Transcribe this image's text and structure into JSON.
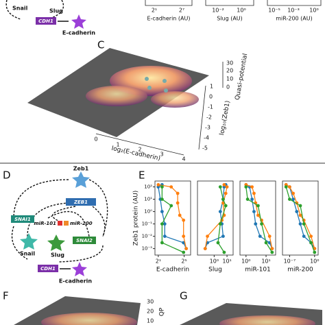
{
  "top": {
    "network": {
      "snail": "Snail",
      "slug": "Slug",
      "cdh1": "CDH1",
      "ecad": "E-cadherin"
    },
    "axes": [
      {
        "label": "E-cadherin (AU)",
        "ticks": [
          "2¹",
          "2⁷"
        ]
      },
      {
        "label": "Slug (AU)",
        "ticks": [
          "10⁻²",
          "10⁰"
        ]
      },
      {
        "label": "miR-200 (AU)",
        "ticks": [
          "10⁻⁵",
          "10⁻³",
          "10⁰"
        ]
      }
    ]
  },
  "panel_c": {
    "label": "C",
    "xlabel": "log₂(E-cadherin)",
    "ylabel": "log₁₀(Zeb1)",
    "zlabel": "Quasi-potential",
    "xticks": [
      "0",
      "1",
      "2",
      "3",
      "4"
    ],
    "yticks": [
      "1",
      "0",
      "-1",
      "-2",
      "-3",
      "-4",
      "-5"
    ],
    "zticks": [
      "30",
      "20",
      "10",
      "0"
    ]
  },
  "panel_d": {
    "label": "D",
    "nodes": {
      "zeb1_protein": "Zeb1",
      "zeb1_gene": "ZEB1",
      "snai1": "SNAI1",
      "snai2": "SNAI2",
      "mir101": "miR-101",
      "mir200": "miR-200",
      "snail": "Snail",
      "slug": "Slug",
      "cdh1": "CDH1",
      "ecad": "E-cadherin"
    }
  },
  "panel_e": {
    "label": "E"
  },
  "panel_f": {
    "label": "F",
    "zlabel": "QP",
    "zticks": [
      "30",
      "20",
      "10"
    ]
  },
  "panel_g": {
    "label": "G"
  },
  "chart_data": [
    {
      "type": "line",
      "xlabel": "E-cadherin",
      "ylabel": "Zeb1 protein (AU)",
      "xlog": true,
      "ylog": true,
      "xlim": [
        1.4,
        64
      ],
      "ylim": [
        0.0003,
        300
      ],
      "xticks": [
        {
          "value": 2,
          "label": "2¹"
        },
        {
          "value": 32,
          "label": "2⁵"
        }
      ],
      "yticks": [
        {
          "value": 100,
          "label": "10²"
        },
        {
          "value": 10,
          "label": "10¹"
        },
        {
          "value": 1,
          "label": "10⁰"
        },
        {
          "value": 0.1,
          "label": "10⁻¹"
        },
        {
          "value": 0.01,
          "label": "10⁻²"
        },
        {
          "value": 0.001,
          "label": "10⁻³"
        }
      ],
      "series": [
        {
          "color": "#1f77b4",
          "x": [
            3,
            2,
            2.5,
            3,
            4,
            4,
            30,
            40
          ],
          "values": [
            150,
            100,
            10,
            1,
            0.1,
            0.01,
            0.003,
            0.001
          ]
        },
        {
          "color": "#ff7f0e",
          "x": [
            2,
            8,
            16,
            16,
            20,
            30,
            30,
            40
          ],
          "values": [
            150,
            100,
            30,
            5,
            0.5,
            0.2,
            0.01,
            0.001
          ]
        },
        {
          "color": "#2ca02c",
          "x": [
            3,
            3,
            8,
            3,
            3,
            30
          ],
          "values": [
            100,
            10,
            3,
            0.1,
            0.003,
            0.0005
          ]
        }
      ]
    },
    {
      "type": "line",
      "xlabel": "Slug",
      "xlog": true,
      "ylog": true,
      "xlim": [
        0.05,
        30
      ],
      "ylim": [
        0.0003,
        300
      ],
      "xticks": [
        {
          "value": 1,
          "label": "10⁰"
        },
        {
          "value": 10,
          "label": "10¹"
        }
      ],
      "series": [
        {
          "color": "#1f77b4",
          "x": [
            8,
            6,
            5,
            3,
            4,
            5,
            0.3,
            0.2
          ],
          "values": [
            150,
            100,
            10,
            1,
            0.1,
            0.01,
            0.003,
            0.001
          ]
        },
        {
          "color": "#ff7f0e",
          "x": [
            6,
            10,
            8,
            5,
            6,
            4,
            0.3,
            0.2
          ],
          "values": [
            150,
            100,
            30,
            5,
            0.5,
            0.2,
            0.01,
            0.001
          ]
        },
        {
          "color": "#2ca02c",
          "x": [
            3,
            5,
            8,
            3,
            2,
            6
          ],
          "values": [
            100,
            10,
            3,
            0.1,
            0.003,
            0.0005
          ]
        }
      ]
    },
    {
      "type": "line",
      "xlabel": "miR-101",
      "xlog": true,
      "ylog": true,
      "xlim": [
        0.5,
        30
      ],
      "ylim": [
        0.0003,
        300
      ],
      "xticks": [
        {
          "value": 1,
          "label": "10⁰"
        },
        {
          "value": 10,
          "label": "10¹"
        }
      ],
      "series": [
        {
          "color": "#1f77b4",
          "x": [
            1,
            1.5,
            2,
            2.5,
            3,
            5,
            15,
            20
          ],
          "values": [
            150,
            100,
            10,
            1,
            0.1,
            0.01,
            0.003,
            0.001
          ]
        },
        {
          "color": "#ff7f0e",
          "x": [
            1,
            2,
            2.5,
            3,
            4,
            6,
            15,
            20
          ],
          "values": [
            150,
            100,
            30,
            5,
            0.5,
            0.2,
            0.01,
            0.001
          ]
        },
        {
          "color": "#2ca02c",
          "x": [
            1,
            1.2,
            4,
            6,
            10,
            20
          ],
          "values": [
            100,
            10,
            3,
            0.1,
            0.003,
            0.0005
          ]
        }
      ]
    },
    {
      "type": "line",
      "xlabel": "miR-200",
      "xlog": true,
      "ylog": true,
      "xlim": [
        1e-09,
        10
      ],
      "ylim": [
        0.0003,
        300
      ],
      "xticks": [
        {
          "value": 1e-07,
          "label": "10⁻⁷"
        },
        {
          "value": 1,
          "label": "10⁰"
        }
      ],
      "series": [
        {
          "color": "#1f77b4",
          "x": [
            1e-08,
            1e-07,
            1e-06,
            1e-05,
            0.0001,
            0.001,
            0.1,
            1
          ],
          "values": [
            150,
            100,
            10,
            1,
            0.1,
            0.01,
            0.003,
            0.001
          ]
        },
        {
          "color": "#ff7f0e",
          "x": [
            1e-08,
            1e-07,
            1e-06,
            1e-05,
            0.0001,
            0.001,
            0.1,
            1
          ],
          "values": [
            150,
            100,
            30,
            5,
            0.5,
            0.2,
            0.01,
            0.001
          ]
        },
        {
          "color": "#2ca02c",
          "x": [
            1e-08,
            1e-07,
            0.0001,
            0.001,
            0.1,
            1
          ],
          "values": [
            100,
            10,
            3,
            0.1,
            0.003,
            0.0005
          ]
        }
      ]
    }
  ]
}
